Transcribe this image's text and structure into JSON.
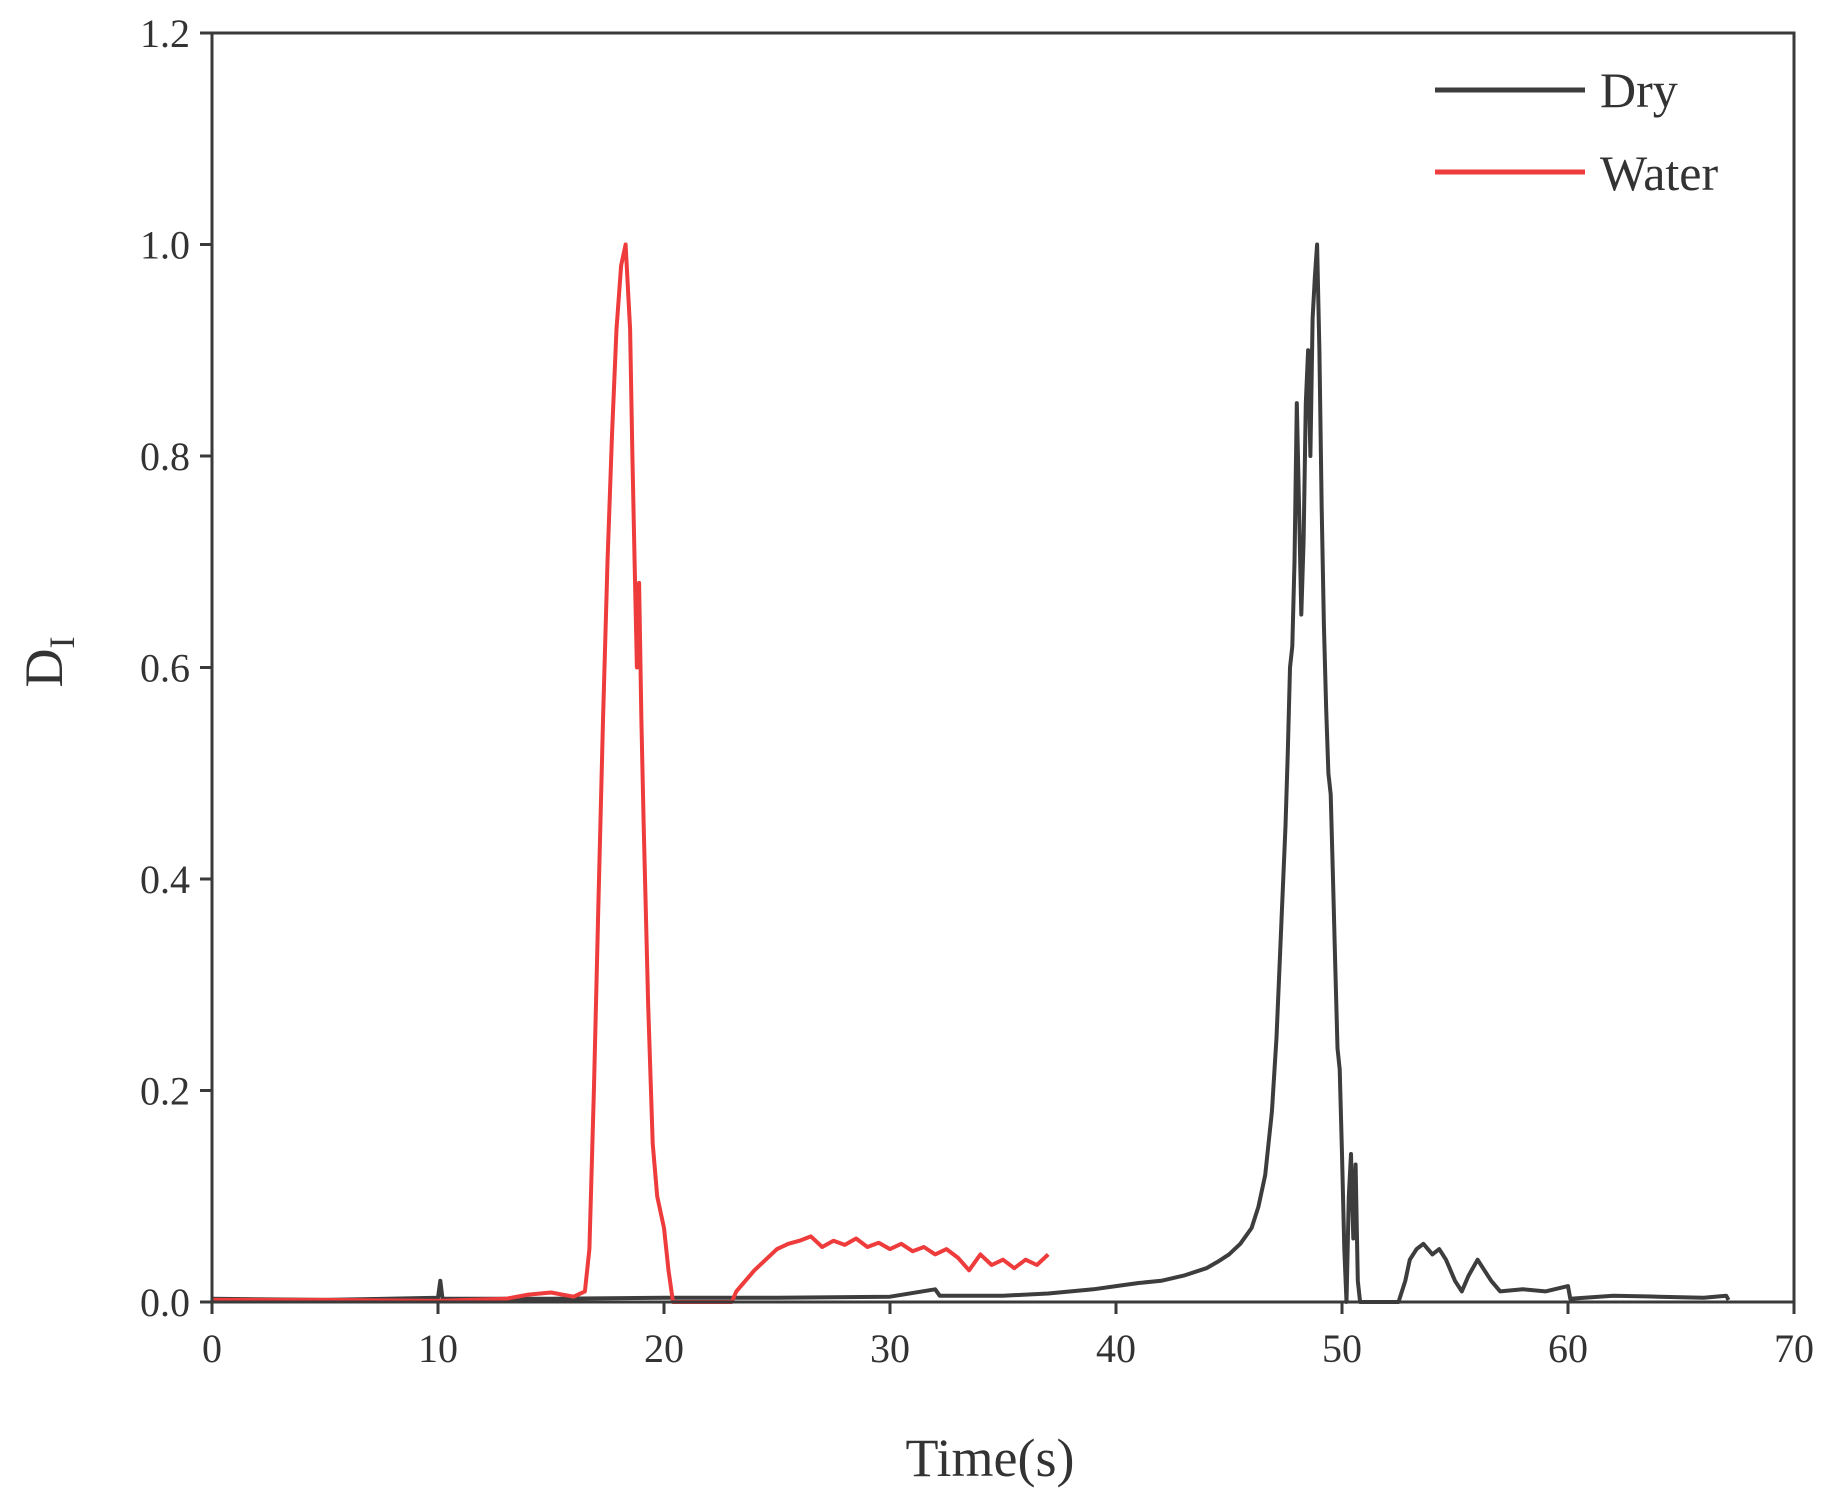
{
  "chart_data": {
    "type": "line",
    "xlabel": "Time(s)",
    "ylabel": "D",
    "ylabel_subscript": "I",
    "xlim": [
      0,
      70
    ],
    "ylim": [
      0.0,
      1.2
    ],
    "xticks": [
      0,
      10,
      20,
      30,
      40,
      50,
      60,
      70
    ],
    "xtick_labels": [
      "0",
      "10",
      "20",
      "30",
      "40",
      "50",
      "60",
      "70"
    ],
    "yticks": [
      0.0,
      0.2,
      0.4,
      0.6,
      0.8,
      1.0,
      1.2
    ],
    "ytick_labels": [
      "0.0",
      "0.2",
      "0.4",
      "0.6",
      "0.8",
      "1.0",
      "1.2"
    ],
    "grid": false,
    "legend_position": "top-right",
    "series": [
      {
        "name": "Dry",
        "color": "#3d3d3d",
        "points": [
          [
            0,
            0.003
          ],
          [
            5,
            0.002
          ],
          [
            10,
            0.004
          ],
          [
            10.1,
            0.02
          ],
          [
            10.2,
            0.003
          ],
          [
            15,
            0.003
          ],
          [
            20,
            0.004
          ],
          [
            25,
            0.004
          ],
          [
            30,
            0.005
          ],
          [
            32,
            0.012
          ],
          [
            32.2,
            0.006
          ],
          [
            35,
            0.006
          ],
          [
            37,
            0.008
          ],
          [
            39,
            0.012
          ],
          [
            40,
            0.015
          ],
          [
            41,
            0.018
          ],
          [
            42,
            0.02
          ],
          [
            43,
            0.025
          ],
          [
            44,
            0.032
          ],
          [
            44.5,
            0.038
          ],
          [
            45,
            0.045
          ],
          [
            45.5,
            0.055
          ],
          [
            46,
            0.07
          ],
          [
            46.3,
            0.09
          ],
          [
            46.6,
            0.12
          ],
          [
            46.9,
            0.18
          ],
          [
            47.1,
            0.25
          ],
          [
            47.3,
            0.35
          ],
          [
            47.5,
            0.45
          ],
          [
            47.6,
            0.52
          ],
          [
            47.7,
            0.6
          ],
          [
            47.8,
            0.62
          ],
          [
            47.9,
            0.7
          ],
          [
            48.0,
            0.85
          ],
          [
            48.1,
            0.75
          ],
          [
            48.2,
            0.65
          ],
          [
            48.3,
            0.72
          ],
          [
            48.4,
            0.85
          ],
          [
            48.5,
            0.9
          ],
          [
            48.6,
            0.8
          ],
          [
            48.7,
            0.93
          ],
          [
            48.8,
            0.97
          ],
          [
            48.9,
            1.0
          ],
          [
            49.0,
            0.9
          ],
          [
            49.1,
            0.75
          ],
          [
            49.2,
            0.64
          ],
          [
            49.3,
            0.56
          ],
          [
            49.4,
            0.5
          ],
          [
            49.5,
            0.48
          ],
          [
            49.6,
            0.4
          ],
          [
            49.7,
            0.32
          ],
          [
            49.8,
            0.24
          ],
          [
            49.9,
            0.22
          ],
          [
            50.0,
            0.14
          ],
          [
            50.1,
            0.05
          ],
          [
            50.2,
            0.0
          ],
          [
            50.3,
            0.1
          ],
          [
            50.4,
            0.14
          ],
          [
            50.5,
            0.06
          ],
          [
            50.6,
            0.13
          ],
          [
            50.7,
            0.02
          ],
          [
            50.8,
            0.0
          ],
          [
            52.5,
            0.0
          ],
          [
            52.8,
            0.02
          ],
          [
            53.0,
            0.04
          ],
          [
            53.3,
            0.05
          ],
          [
            53.6,
            0.055
          ],
          [
            54.0,
            0.045
          ],
          [
            54.3,
            0.05
          ],
          [
            54.6,
            0.04
          ],
          [
            55.0,
            0.02
          ],
          [
            55.3,
            0.01
          ],
          [
            55.6,
            0.025
          ],
          [
            56.0,
            0.04
          ],
          [
            56.3,
            0.03
          ],
          [
            56.6,
            0.02
          ],
          [
            57.0,
            0.01
          ],
          [
            58,
            0.012
          ],
          [
            59,
            0.01
          ],
          [
            60,
            0.015
          ],
          [
            60.1,
            0.003
          ],
          [
            62,
            0.006
          ],
          [
            64,
            0.005
          ],
          [
            66,
            0.004
          ],
          [
            67,
            0.006
          ],
          [
            67.1,
            0.002
          ]
        ]
      },
      {
        "name": "Water",
        "color": "#ee3b3b",
        "points": [
          [
            0,
            0.002
          ],
          [
            5,
            0.002
          ],
          [
            10,
            0.001
          ],
          [
            13,
            0.003
          ],
          [
            14,
            0.007
          ],
          [
            15,
            0.009
          ],
          [
            16,
            0.005
          ],
          [
            16.5,
            0.01
          ],
          [
            16.7,
            0.05
          ],
          [
            16.9,
            0.2
          ],
          [
            17.1,
            0.38
          ],
          [
            17.3,
            0.55
          ],
          [
            17.5,
            0.7
          ],
          [
            17.7,
            0.82
          ],
          [
            17.9,
            0.92
          ],
          [
            18.1,
            0.98
          ],
          [
            18.3,
            1.0
          ],
          [
            18.5,
            0.92
          ],
          [
            18.6,
            0.8
          ],
          [
            18.7,
            0.7
          ],
          [
            18.8,
            0.6
          ],
          [
            18.9,
            0.68
          ],
          [
            19.0,
            0.55
          ],
          [
            19.1,
            0.45
          ],
          [
            19.3,
            0.28
          ],
          [
            19.5,
            0.15
          ],
          [
            19.7,
            0.1
          ],
          [
            20.0,
            0.07
          ],
          [
            20.2,
            0.03
          ],
          [
            20.4,
            0.0
          ],
          [
            23.0,
            0.0
          ],
          [
            23.2,
            0.01
          ],
          [
            23.6,
            0.02
          ],
          [
            24.0,
            0.03
          ],
          [
            24.5,
            0.04
          ],
          [
            25.0,
            0.05
          ],
          [
            25.5,
            0.055
          ],
          [
            26.0,
            0.058
          ],
          [
            26.5,
            0.062
          ],
          [
            27.0,
            0.052
          ],
          [
            27.5,
            0.058
          ],
          [
            28.0,
            0.054
          ],
          [
            28.5,
            0.06
          ],
          [
            29.0,
            0.052
          ],
          [
            29.5,
            0.056
          ],
          [
            30.0,
            0.05
          ],
          [
            30.5,
            0.055
          ],
          [
            31.0,
            0.048
          ],
          [
            31.5,
            0.052
          ],
          [
            32.0,
            0.045
          ],
          [
            32.5,
            0.05
          ],
          [
            33.0,
            0.042
          ],
          [
            33.5,
            0.03
          ],
          [
            34.0,
            0.045
          ],
          [
            34.5,
            0.035
          ],
          [
            35.0,
            0.04
          ],
          [
            35.5,
            0.032
          ],
          [
            36.0,
            0.04
          ],
          [
            36.5,
            0.035
          ],
          [
            37.0,
            0.045
          ]
        ]
      }
    ]
  }
}
